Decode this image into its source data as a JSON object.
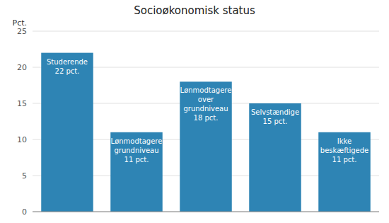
{
  "chart_data": {
    "type": "bar",
    "title": "Socioøkonomisk status",
    "ylabel": "Pct.",
    "categories": [
      "Studerende",
      "Lønmodtagere\ngrundniveau",
      "Lønmodtagere\nover\ngrundniveau",
      "Selvstændige",
      "Ikke\nbeskæftigede"
    ],
    "values": [
      22,
      11,
      18,
      15,
      11
    ],
    "value_labels": [
      "22 pct.",
      "11 pct.",
      "18 pct.",
      "15 pct.",
      "11 pct."
    ],
    "data_labels": true,
    "color": "#2e84b4",
    "ylim": [
      0,
      25
    ],
    "yticks": [
      0,
      5,
      10,
      15,
      20,
      25
    ],
    "grid": true,
    "tick_labels": "y"
  }
}
